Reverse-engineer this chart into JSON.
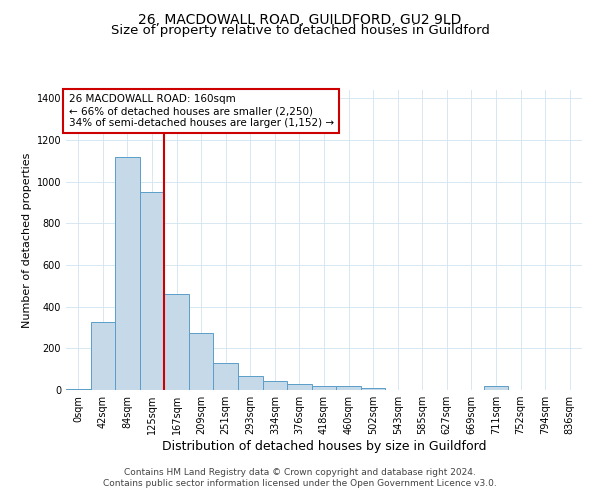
{
  "title": "26, MACDOWALL ROAD, GUILDFORD, GU2 9LD",
  "subtitle": "Size of property relative to detached houses in Guildford",
  "xlabel": "Distribution of detached houses by size in Guildford",
  "ylabel": "Number of detached properties",
  "footer_line1": "Contains HM Land Registry data © Crown copyright and database right 2024.",
  "footer_line2": "Contains public sector information licensed under the Open Government Licence v3.0.",
  "bins": [
    "0sqm",
    "42sqm",
    "84sqm",
    "125sqm",
    "167sqm",
    "209sqm",
    "251sqm",
    "293sqm",
    "334sqm",
    "376sqm",
    "418sqm",
    "460sqm",
    "502sqm",
    "543sqm",
    "585sqm",
    "627sqm",
    "669sqm",
    "711sqm",
    "752sqm",
    "794sqm",
    "836sqm"
  ],
  "bar_heights": [
    5,
    325,
    1120,
    950,
    460,
    275,
    130,
    68,
    42,
    30,
    18,
    18,
    10,
    1,
    1,
    1,
    1,
    18,
    1,
    1,
    0
  ],
  "bar_color": "#c6d9e8",
  "bar_edge_color": "#5a9ec9",
  "vline_bin_index": 3,
  "vline_color": "#cc0000",
  "annotation_text_line1": "26 MACDOWALL ROAD: 160sqm",
  "annotation_text_line2": "← 66% of detached houses are smaller (2,250)",
  "annotation_text_line3": "34% of semi-detached houses are larger (1,152) →",
  "annotation_box_color": "#cc0000",
  "annotation_fill_color": "#ffffff",
  "ylim": [
    0,
    1440
  ],
  "yticks": [
    0,
    200,
    400,
    600,
    800,
    1000,
    1200,
    1400
  ],
  "title_fontsize": 10,
  "subtitle_fontsize": 9.5,
  "xlabel_fontsize": 9,
  "ylabel_fontsize": 8,
  "tick_fontsize": 7,
  "footer_fontsize": 6.5,
  "annotation_fontsize": 7.5
}
